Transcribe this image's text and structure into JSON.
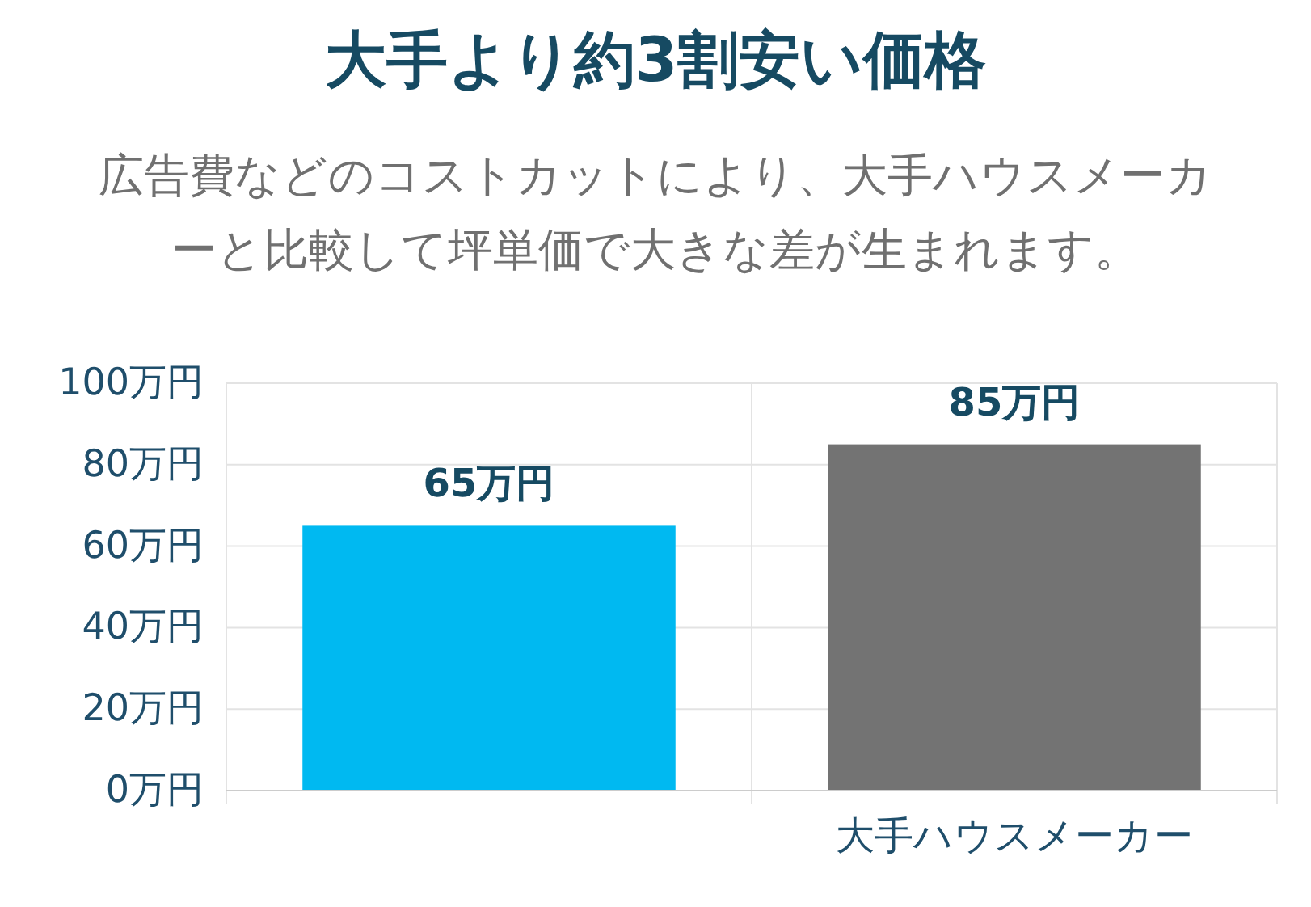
{
  "chart_data": {
    "type": "bar",
    "title": "大手より約3割安い価格",
    "subtitle": "広告費などのコストカットにより、大手ハウスメーカーと比較して坪単価で大きな差が生まれます。",
    "categories": [
      null,
      "大手ハウスメーカー"
    ],
    "values": [
      65,
      85
    ],
    "colors": [
      "#00b9f1",
      "#737373"
    ],
    "value_labels": [
      "65万円",
      "85万円"
    ],
    "ylim": [
      0,
      100
    ],
    "yticks": [
      {
        "value": 0,
        "label": "0万円"
      },
      {
        "value": 20,
        "label": "20万円"
      },
      {
        "value": 40,
        "label": "40万円"
      },
      {
        "value": 60,
        "label": "60万円"
      },
      {
        "value": 80,
        "label": "80万円"
      },
      {
        "value": 100,
        "label": "100万円"
      }
    ],
    "grid": true
  }
}
